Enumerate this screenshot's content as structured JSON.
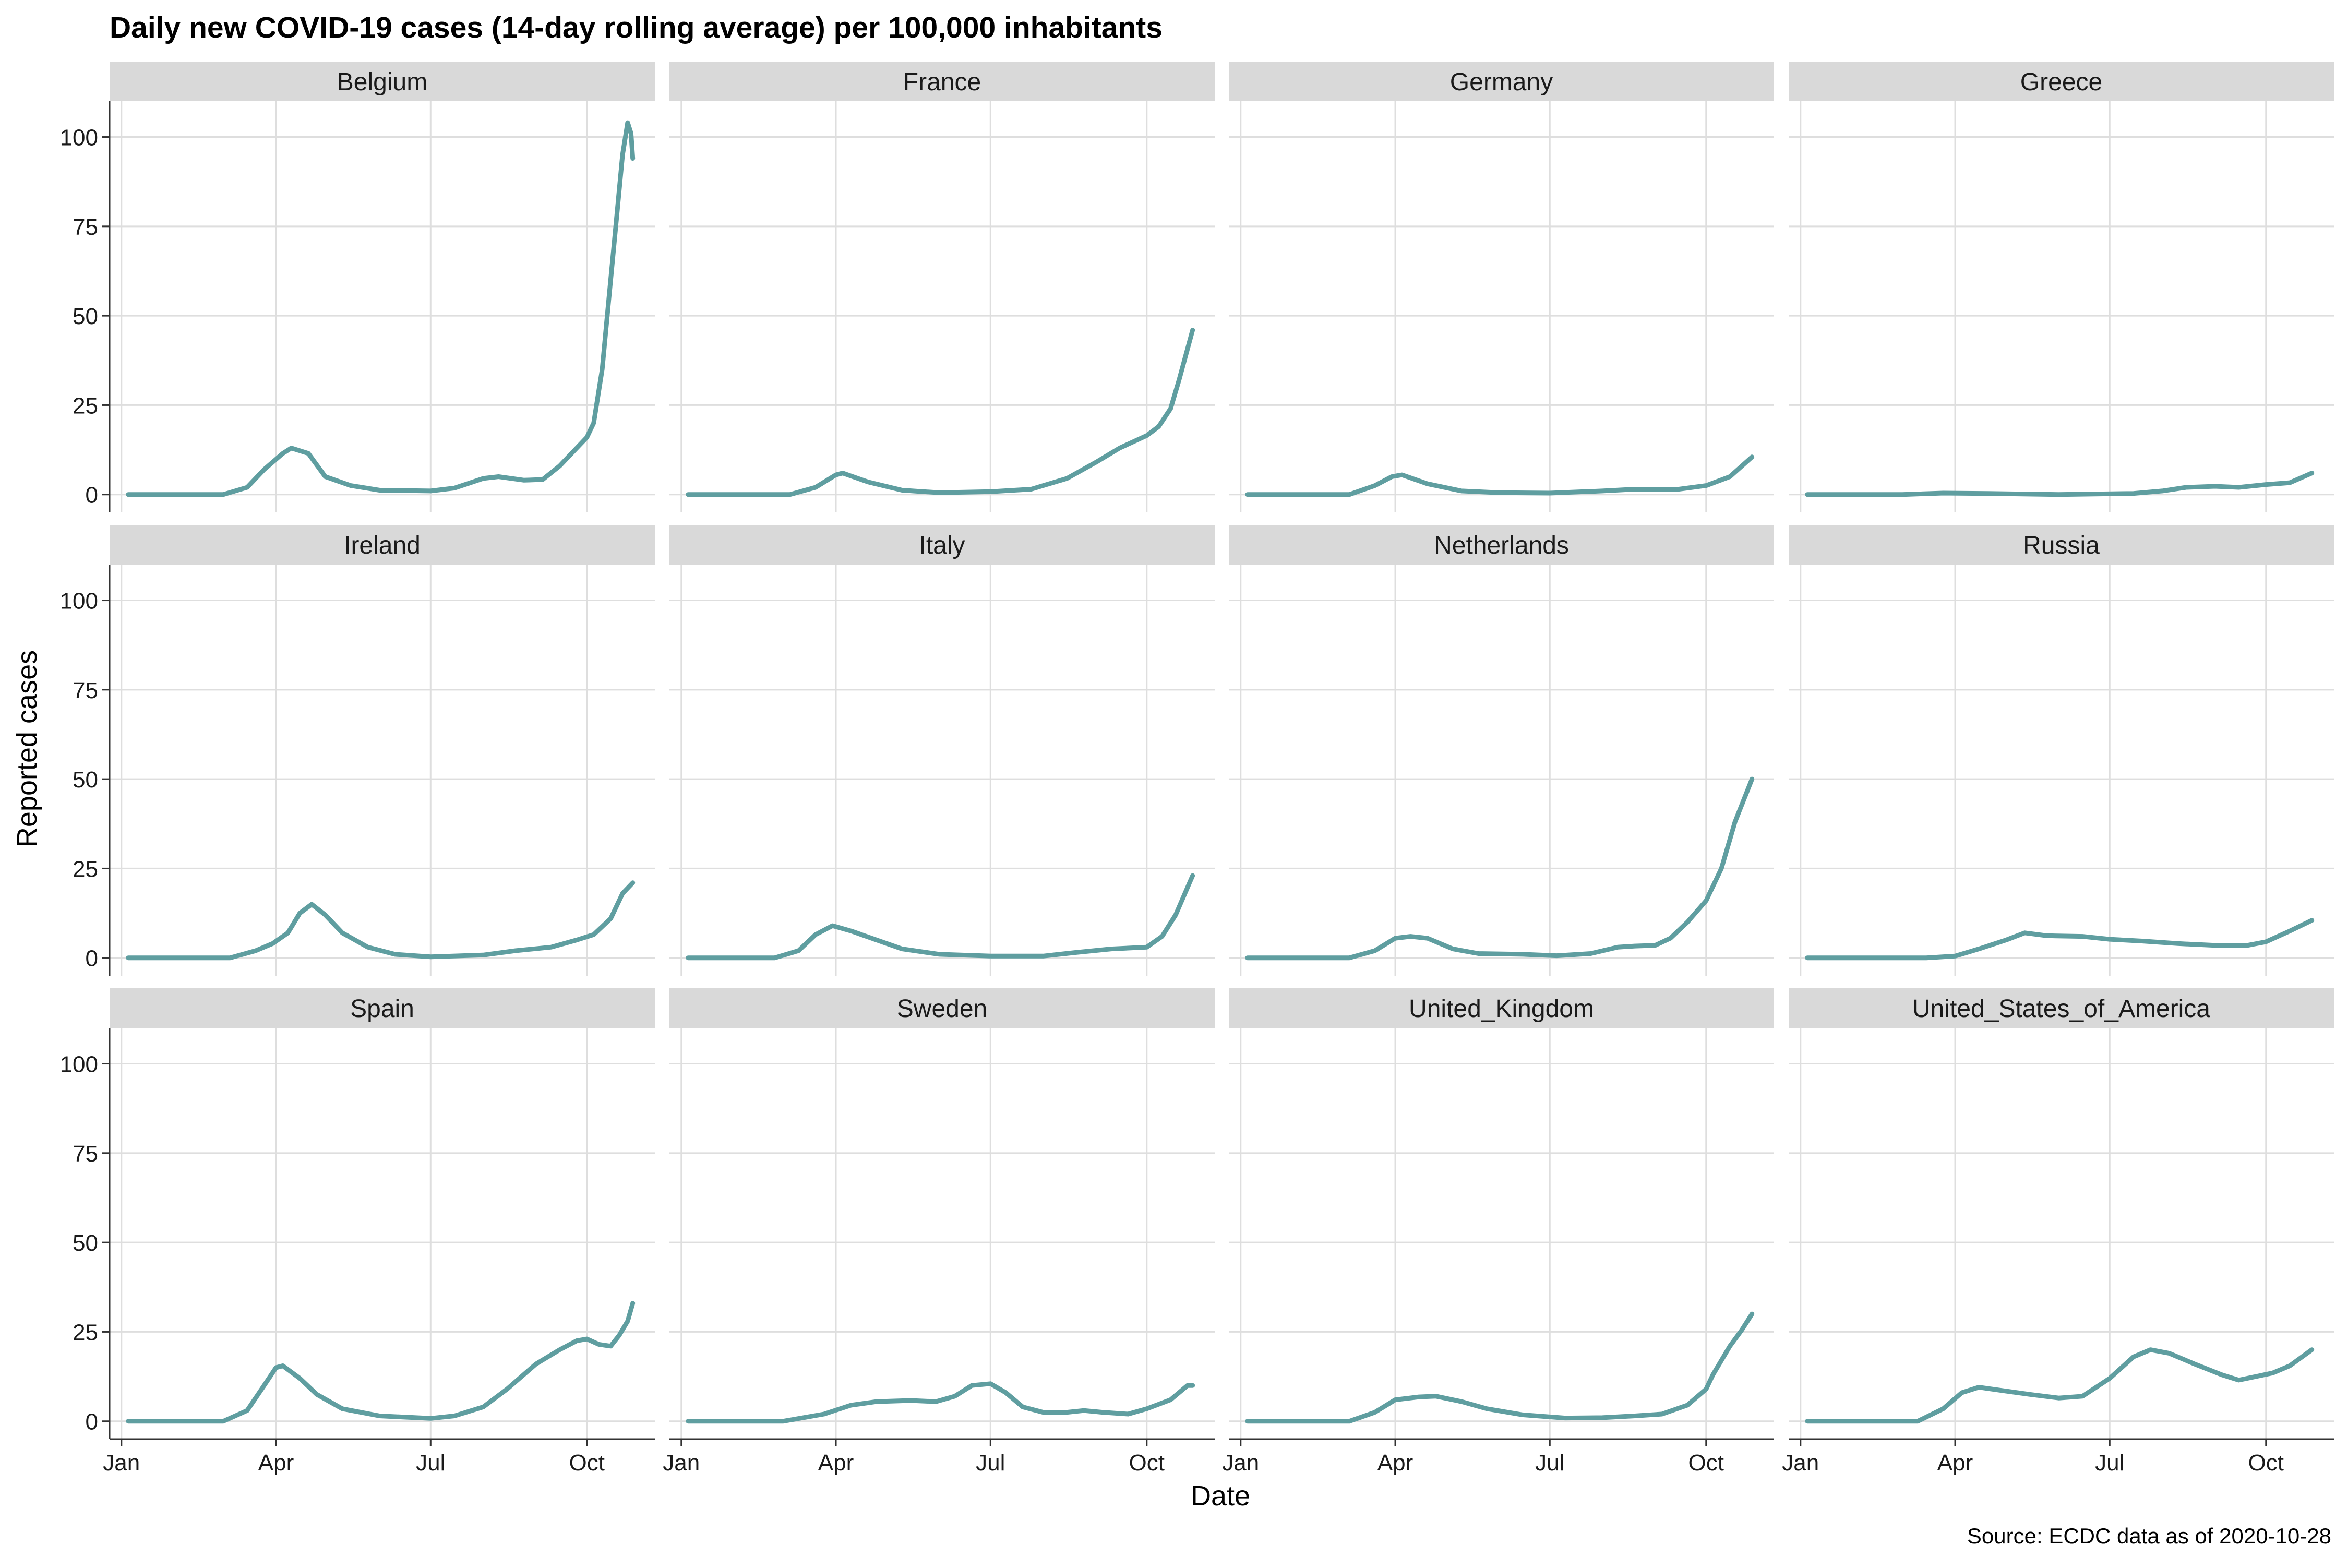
{
  "chart_data": {
    "type": "line",
    "title": "Daily new COVID-19 cases (14-day rolling average) per 100,000 inhabitants",
    "xlabel": "Date",
    "ylabel": "Reported cases",
    "caption": "Source: ECDC data as of 2020-10-28",
    "x_ticks": [
      {
        "label": "Jan",
        "date": "2020-01-01"
      },
      {
        "label": "Apr",
        "date": "2020-04-01"
      },
      {
        "label": "Jul",
        "date": "2020-07-01"
      },
      {
        "label": "Oct",
        "date": "2020-10-01"
      }
    ],
    "y_ticks": [
      0,
      25,
      50,
      75,
      100
    ],
    "ylim": [
      -5,
      110
    ],
    "xlim": [
      "2019-12-25",
      "2020-11-10"
    ],
    "line_color": "#5f9ea0",
    "grid": true,
    "facets": [
      {
        "name": "Belgium",
        "points": [
          [
            "2020-01-05",
            0
          ],
          [
            "2020-03-01",
            0
          ],
          [
            "2020-03-15",
            2
          ],
          [
            "2020-03-25",
            7
          ],
          [
            "2020-04-05",
            11.5
          ],
          [
            "2020-04-10",
            13
          ],
          [
            "2020-04-20",
            11.5
          ],
          [
            "2020-04-30",
            5
          ],
          [
            "2020-05-15",
            2.5
          ],
          [
            "2020-06-01",
            1.2
          ],
          [
            "2020-07-01",
            1
          ],
          [
            "2020-07-15",
            1.8
          ],
          [
            "2020-08-01",
            4.5
          ],
          [
            "2020-08-10",
            5
          ],
          [
            "2020-08-25",
            4
          ],
          [
            "2020-09-05",
            4.2
          ],
          [
            "2020-09-15",
            8
          ],
          [
            "2020-09-25",
            13
          ],
          [
            "2020-10-01",
            16
          ],
          [
            "2020-10-05",
            20
          ],
          [
            "2020-10-10",
            35
          ],
          [
            "2020-10-13",
            50
          ],
          [
            "2020-10-16",
            65
          ],
          [
            "2020-10-19",
            80
          ],
          [
            "2020-10-22",
            95
          ],
          [
            "2020-10-25",
            104
          ],
          [
            "2020-10-27",
            101
          ],
          [
            "2020-10-28",
            94
          ]
        ]
      },
      {
        "name": "France",
        "points": [
          [
            "2020-01-05",
            0
          ],
          [
            "2020-03-05",
            0
          ],
          [
            "2020-03-20",
            2
          ],
          [
            "2020-04-01",
            5.5
          ],
          [
            "2020-04-05",
            6
          ],
          [
            "2020-04-20",
            3.5
          ],
          [
            "2020-05-10",
            1.2
          ],
          [
            "2020-06-01",
            0.5
          ],
          [
            "2020-07-01",
            0.8
          ],
          [
            "2020-07-25",
            1.5
          ],
          [
            "2020-08-15",
            4.5
          ],
          [
            "2020-09-01",
            9
          ],
          [
            "2020-09-15",
            13
          ],
          [
            "2020-10-01",
            16.5
          ],
          [
            "2020-10-08",
            19
          ],
          [
            "2020-10-15",
            24
          ],
          [
            "2020-10-20",
            32
          ],
          [
            "2020-10-28",
            46
          ]
        ]
      },
      {
        "name": "Germany",
        "points": [
          [
            "2020-01-05",
            0
          ],
          [
            "2020-03-05",
            0
          ],
          [
            "2020-03-20",
            2.5
          ],
          [
            "2020-03-30",
            5
          ],
          [
            "2020-04-05",
            5.5
          ],
          [
            "2020-04-20",
            3
          ],
          [
            "2020-05-10",
            1
          ],
          [
            "2020-06-01",
            0.5
          ],
          [
            "2020-07-01",
            0.4
          ],
          [
            "2020-08-01",
            1
          ],
          [
            "2020-08-20",
            1.5
          ],
          [
            "2020-09-15",
            1.5
          ],
          [
            "2020-10-01",
            2.5
          ],
          [
            "2020-10-15",
            5
          ],
          [
            "2020-10-28",
            10.5
          ]
        ]
      },
      {
        "name": "Greece",
        "points": [
          [
            "2020-01-05",
            0
          ],
          [
            "2020-03-01",
            0
          ],
          [
            "2020-03-25",
            0.4
          ],
          [
            "2020-04-20",
            0.3
          ],
          [
            "2020-06-01",
            0
          ],
          [
            "2020-07-15",
            0.3
          ],
          [
            "2020-08-01",
            1
          ],
          [
            "2020-08-15",
            2
          ],
          [
            "2020-09-01",
            2.3
          ],
          [
            "2020-09-15",
            2
          ],
          [
            "2020-10-01",
            2.8
          ],
          [
            "2020-10-15",
            3.3
          ],
          [
            "2020-10-28",
            6
          ]
        ]
      },
      {
        "name": "Ireland",
        "points": [
          [
            "2020-01-05",
            0
          ],
          [
            "2020-03-05",
            0
          ],
          [
            "2020-03-20",
            2
          ],
          [
            "2020-03-30",
            4
          ],
          [
            "2020-04-08",
            7
          ],
          [
            "2020-04-15",
            12.5
          ],
          [
            "2020-04-22",
            15
          ],
          [
            "2020-04-30",
            12
          ],
          [
            "2020-05-10",
            7
          ],
          [
            "2020-05-25",
            3
          ],
          [
            "2020-06-10",
            1
          ],
          [
            "2020-07-01",
            0.3
          ],
          [
            "2020-08-01",
            0.8
          ],
          [
            "2020-08-20",
            2
          ],
          [
            "2020-09-10",
            3
          ],
          [
            "2020-09-25",
            5
          ],
          [
            "2020-10-05",
            6.5
          ],
          [
            "2020-10-15",
            11
          ],
          [
            "2020-10-22",
            18
          ],
          [
            "2020-10-28",
            21
          ]
        ]
      },
      {
        "name": "Italy",
        "points": [
          [
            "2020-01-05",
            0
          ],
          [
            "2020-02-25",
            0
          ],
          [
            "2020-03-10",
            2
          ],
          [
            "2020-03-20",
            6.5
          ],
          [
            "2020-03-30",
            9
          ],
          [
            "2020-04-10",
            7.5
          ],
          [
            "2020-04-25",
            5
          ],
          [
            "2020-05-10",
            2.5
          ],
          [
            "2020-06-01",
            1
          ],
          [
            "2020-07-01",
            0.5
          ],
          [
            "2020-08-01",
            0.5
          ],
          [
            "2020-08-20",
            1.5
          ],
          [
            "2020-09-10",
            2.5
          ],
          [
            "2020-10-01",
            3
          ],
          [
            "2020-10-10",
            6
          ],
          [
            "2020-10-18",
            12
          ],
          [
            "2020-10-28",
            23
          ]
        ]
      },
      {
        "name": "Netherlands",
        "points": [
          [
            "2020-01-05",
            0
          ],
          [
            "2020-03-05",
            0
          ],
          [
            "2020-03-20",
            2
          ],
          [
            "2020-04-01",
            5.5
          ],
          [
            "2020-04-10",
            6
          ],
          [
            "2020-04-20",
            5.5
          ],
          [
            "2020-05-05",
            2.5
          ],
          [
            "2020-05-20",
            1.2
          ],
          [
            "2020-06-15",
            1
          ],
          [
            "2020-07-05",
            0.6
          ],
          [
            "2020-07-25",
            1.2
          ],
          [
            "2020-08-10",
            3
          ],
          [
            "2020-08-20",
            3.3
          ],
          [
            "2020-09-01",
            3.5
          ],
          [
            "2020-09-10",
            5.5
          ],
          [
            "2020-09-20",
            10
          ],
          [
            "2020-10-01",
            16
          ],
          [
            "2020-10-10",
            25
          ],
          [
            "2020-10-18",
            38
          ],
          [
            "2020-10-28",
            50
          ]
        ]
      },
      {
        "name": "Russia",
        "points": [
          [
            "2020-01-05",
            0
          ],
          [
            "2020-03-15",
            0
          ],
          [
            "2020-04-01",
            0.5
          ],
          [
            "2020-04-15",
            2.5
          ],
          [
            "2020-05-01",
            5
          ],
          [
            "2020-05-12",
            7
          ],
          [
            "2020-05-25",
            6.2
          ],
          [
            "2020-06-15",
            6
          ],
          [
            "2020-07-01",
            5.2
          ],
          [
            "2020-07-20",
            4.7
          ],
          [
            "2020-08-10",
            4
          ],
          [
            "2020-09-01",
            3.5
          ],
          [
            "2020-09-20",
            3.5
          ],
          [
            "2020-10-01",
            4.5
          ],
          [
            "2020-10-15",
            7.5
          ],
          [
            "2020-10-28",
            10.5
          ]
        ]
      },
      {
        "name": "Spain",
        "points": [
          [
            "2020-01-05",
            0
          ],
          [
            "2020-03-01",
            0
          ],
          [
            "2020-03-15",
            3
          ],
          [
            "2020-03-25",
            10
          ],
          [
            "2020-04-01",
            15
          ],
          [
            "2020-04-05",
            15.5
          ],
          [
            "2020-04-15",
            12
          ],
          [
            "2020-04-25",
            7.5
          ],
          [
            "2020-05-10",
            3.5
          ],
          [
            "2020-06-01",
            1.5
          ],
          [
            "2020-07-01",
            0.8
          ],
          [
            "2020-07-15",
            1.5
          ],
          [
            "2020-08-01",
            4
          ],
          [
            "2020-08-15",
            9
          ],
          [
            "2020-09-01",
            16
          ],
          [
            "2020-09-15",
            20
          ],
          [
            "2020-09-25",
            22.5
          ],
          [
            "2020-10-01",
            23
          ],
          [
            "2020-10-08",
            21.5
          ],
          [
            "2020-10-15",
            21
          ],
          [
            "2020-10-20",
            24
          ],
          [
            "2020-10-25",
            28
          ],
          [
            "2020-10-28",
            33
          ]
        ]
      },
      {
        "name": "Sweden",
        "points": [
          [
            "2020-01-05",
            0
          ],
          [
            "2020-03-01",
            0
          ],
          [
            "2020-03-25",
            2
          ],
          [
            "2020-04-10",
            4.5
          ],
          [
            "2020-04-25",
            5.5
          ],
          [
            "2020-05-15",
            5.8
          ],
          [
            "2020-05-30",
            5.5
          ],
          [
            "2020-06-10",
            7
          ],
          [
            "2020-06-20",
            10
          ],
          [
            "2020-07-01",
            10.5
          ],
          [
            "2020-07-10",
            8
          ],
          [
            "2020-07-20",
            4
          ],
          [
            "2020-08-01",
            2.5
          ],
          [
            "2020-08-15",
            2.5
          ],
          [
            "2020-08-25",
            3
          ],
          [
            "2020-09-05",
            2.5
          ],
          [
            "2020-09-20",
            2
          ],
          [
            "2020-10-01",
            3.5
          ],
          [
            "2020-10-15",
            6
          ],
          [
            "2020-10-25",
            10
          ],
          [
            "2020-10-28",
            10
          ]
        ]
      },
      {
        "name": "United_Kingdom",
        "points": [
          [
            "2020-01-05",
            0
          ],
          [
            "2020-03-05",
            0
          ],
          [
            "2020-03-20",
            2.5
          ],
          [
            "2020-04-01",
            6
          ],
          [
            "2020-04-15",
            6.8
          ],
          [
            "2020-04-25",
            7
          ],
          [
            "2020-05-10",
            5.5
          ],
          [
            "2020-05-25",
            3.5
          ],
          [
            "2020-06-15",
            1.8
          ],
          [
            "2020-07-10",
            0.9
          ],
          [
            "2020-08-01",
            1
          ],
          [
            "2020-08-20",
            1.5
          ],
          [
            "2020-09-05",
            2
          ],
          [
            "2020-09-20",
            4.5
          ],
          [
            "2020-10-01",
            9
          ],
          [
            "2020-10-05",
            13
          ],
          [
            "2020-10-15",
            21
          ],
          [
            "2020-10-22",
            25.5
          ],
          [
            "2020-10-28",
            30
          ]
        ]
      },
      {
        "name": "United_States_of_America",
        "points": [
          [
            "2020-01-05",
            0
          ],
          [
            "2020-03-10",
            0
          ],
          [
            "2020-03-25",
            3.5
          ],
          [
            "2020-04-05",
            8
          ],
          [
            "2020-04-15",
            9.5
          ],
          [
            "2020-04-30",
            8.5
          ],
          [
            "2020-05-15",
            7.5
          ],
          [
            "2020-06-01",
            6.5
          ],
          [
            "2020-06-15",
            7
          ],
          [
            "2020-07-01",
            12
          ],
          [
            "2020-07-15",
            18
          ],
          [
            "2020-07-25",
            20
          ],
          [
            "2020-08-05",
            19
          ],
          [
            "2020-08-20",
            16
          ],
          [
            "2020-09-05",
            13
          ],
          [
            "2020-09-15",
            11.5
          ],
          [
            "2020-09-25",
            12.5
          ],
          [
            "2020-10-05",
            13.5
          ],
          [
            "2020-10-15",
            15.5
          ],
          [
            "2020-10-28",
            20
          ]
        ]
      }
    ]
  }
}
